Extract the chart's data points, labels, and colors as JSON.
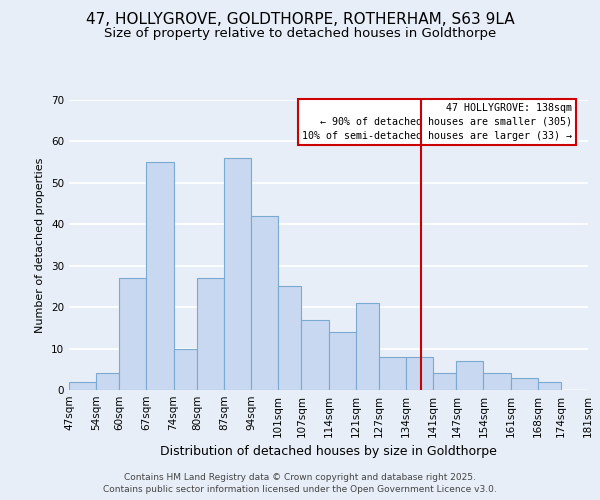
{
  "title": "47, HOLLYGROVE, GOLDTHORPE, ROTHERHAM, S63 9LA",
  "subtitle": "Size of property relative to detached houses in Goldthorpe",
  "xlabel": "Distribution of detached houses by size in Goldthorpe",
  "ylabel": "Number of detached properties",
  "bar_edges": [
    47,
    54,
    60,
    67,
    74,
    80,
    87,
    94,
    101,
    107,
    114,
    121,
    127,
    134,
    141,
    147,
    154,
    161,
    168,
    174,
    181
  ],
  "bar_heights": [
    2,
    4,
    27,
    55,
    10,
    27,
    56,
    42,
    25,
    17,
    14,
    21,
    8,
    8,
    4,
    7,
    4,
    3,
    2,
    0
  ],
  "bar_color": "#c8d8f0",
  "bar_edge_color": "#7aaad0",
  "ylim": [
    0,
    70
  ],
  "yticks": [
    0,
    10,
    20,
    30,
    40,
    50,
    60,
    70
  ],
  "property_line_x": 138,
  "property_line_color": "#cc0000",
  "annotation_title": "47 HOLLYGROVE: 138sqm",
  "annotation_line1": "← 90% of detached houses are smaller (305)",
  "annotation_line2": "10% of semi-detached houses are larger (33) →",
  "annotation_box_color": "#ffffff",
  "annotation_box_edge": "#cc0000",
  "tick_labels": [
    "47sqm",
    "54sqm",
    "60sqm",
    "67sqm",
    "74sqm",
    "80sqm",
    "87sqm",
    "94sqm",
    "101sqm",
    "107sqm",
    "114sqm",
    "121sqm",
    "127sqm",
    "134sqm",
    "141sqm",
    "147sqm",
    "154sqm",
    "161sqm",
    "168sqm",
    "174sqm",
    "181sqm"
  ],
  "footer1": "Contains HM Land Registry data © Crown copyright and database right 2025.",
  "footer2": "Contains public sector information licensed under the Open Government Licence v3.0.",
  "background_color": "#e8eef8",
  "grid_color": "#ffffff",
  "title_fontsize": 11,
  "subtitle_fontsize": 9.5,
  "xlabel_fontsize": 9,
  "ylabel_fontsize": 8,
  "tick_fontsize": 7.5,
  "footer_fontsize": 6.5
}
